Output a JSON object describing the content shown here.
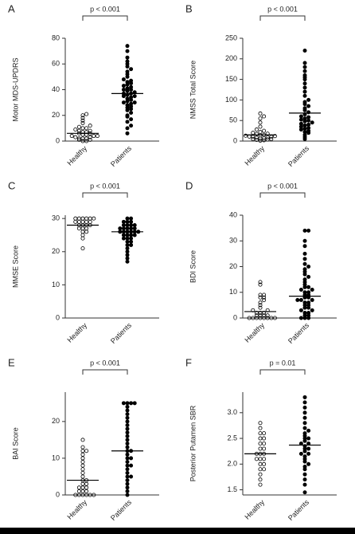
{
  "chart_data": [
    {
      "type": "strip",
      "panel": "A",
      "ylabel": "Motor MDS-UPDRS",
      "annotation": "p < 0.001",
      "categories": [
        "Healthy",
        "Patients"
      ],
      "ylim": [
        0,
        80
      ],
      "yticks": [
        0,
        20,
        40,
        60,
        80
      ],
      "groups": [
        {
          "color": "#000000",
          "fill": "none",
          "mean": 6,
          "values": [
            0,
            0,
            1,
            1,
            2,
            2,
            2,
            3,
            3,
            4,
            4,
            4,
            5,
            5,
            6,
            6,
            7,
            7,
            8,
            8,
            9,
            10,
            10,
            11,
            12,
            14,
            16,
            18,
            20,
            21
          ]
        },
        {
          "color": "#000000",
          "fill": "#000000",
          "mean": 37,
          "values": [
            6,
            10,
            12,
            15,
            17,
            19,
            20,
            22,
            24,
            25,
            26,
            27,
            28,
            29,
            30,
            30,
            31,
            32,
            33,
            34,
            35,
            35,
            36,
            37,
            37,
            38,
            39,
            40,
            40,
            41,
            42,
            43,
            44,
            45,
            46,
            47,
            48,
            50,
            52,
            54,
            56,
            58,
            60,
            62,
            65,
            70,
            74
          ]
        }
      ]
    },
    {
      "type": "strip",
      "panel": "B",
      "ylabel": "NMSS Total Score",
      "annotation": "p < 0.001",
      "categories": [
        "Healthy",
        "Patients"
      ],
      "ylim": [
        0,
        250
      ],
      "yticks": [
        0,
        50,
        100,
        150,
        200,
        250
      ],
      "groups": [
        {
          "color": "#000000",
          "fill": "none",
          "mean": 15,
          "values": [
            1,
            2,
            3,
            4,
            5,
            5,
            6,
            7,
            8,
            9,
            10,
            10,
            11,
            12,
            13,
            14,
            15,
            17,
            18,
            20,
            22,
            25,
            28,
            35,
            45,
            55,
            60,
            67
          ]
        },
        {
          "color": "#000000",
          "fill": "#000000",
          "mean": 68,
          "values": [
            5,
            10,
            15,
            20,
            22,
            25,
            28,
            30,
            32,
            35,
            38,
            40,
            42,
            45,
            48,
            50,
            52,
            55,
            58,
            60,
            65,
            70,
            75,
            80,
            85,
            90,
            95,
            100,
            110,
            120,
            130,
            140,
            150,
            155,
            160,
            170,
            180,
            190,
            220
          ]
        }
      ]
    },
    {
      "type": "strip",
      "panel": "C",
      "ylabel": "MMSE Score",
      "annotation": "p < 0.001",
      "categories": [
        "Healthy",
        "Patients"
      ],
      "ylim": [
        0,
        31
      ],
      "yticks": [
        0,
        10,
        20,
        30
      ],
      "groups": [
        {
          "color": "#000000",
          "fill": "none",
          "mean": 28,
          "values": [
            21,
            24,
            25,
            26,
            26,
            27,
            27,
            27,
            28,
            28,
            28,
            28,
            29,
            29,
            29,
            29,
            29,
            30,
            30,
            30,
            30,
            30,
            30
          ]
        },
        {
          "color": "#000000",
          "fill": "#000000",
          "mean": 26,
          "values": [
            17,
            18,
            19,
            20,
            21,
            22,
            22,
            23,
            23,
            24,
            24,
            24,
            25,
            25,
            25,
            25,
            26,
            26,
            26,
            26,
            26,
            26,
            27,
            27,
            27,
            27,
            27,
            28,
            28,
            28,
            28,
            29,
            29,
            29,
            30,
            30
          ]
        }
      ]
    },
    {
      "type": "strip",
      "panel": "D",
      "ylabel": "BDI Score",
      "annotation": "p < 0.001",
      "categories": [
        "Healthy",
        "Patients"
      ],
      "ylim": [
        0,
        40
      ],
      "yticks": [
        0,
        10,
        20,
        30,
        40
      ],
      "groups": [
        {
          "color": "#000000",
          "fill": "none",
          "mean": 2.5,
          "values": [
            0,
            0,
            0,
            0,
            0,
            0,
            0,
            0,
            1,
            1,
            1,
            1,
            2,
            2,
            2,
            3,
            3,
            4,
            5,
            6,
            7,
            8,
            8,
            9,
            9,
            13,
            14
          ]
        },
        {
          "color": "#000000",
          "fill": "#000000",
          "mean": 8.5,
          "values": [
            0,
            0,
            0,
            1,
            1,
            2,
            2,
            3,
            3,
            4,
            4,
            5,
            5,
            6,
            6,
            7,
            7,
            7,
            8,
            8,
            9,
            9,
            10,
            10,
            11,
            11,
            12,
            12,
            13,
            14,
            15,
            16,
            17,
            18,
            19,
            20,
            21,
            23,
            25,
            28,
            30,
            34,
            34
          ]
        }
      ]
    },
    {
      "type": "strip",
      "panel": "E",
      "ylabel": "BAI Score",
      "annotation": "p < 0.001",
      "categories": [
        "Healthy",
        "Patients"
      ],
      "ylim": [
        0,
        28
      ],
      "yticks": [
        0,
        10,
        20
      ],
      "groups": [
        {
          "color": "#000000",
          "fill": "none",
          "mean": 4,
          "values": [
            0,
            0,
            0,
            0,
            0,
            0,
            1,
            1,
            1,
            2,
            2,
            2,
            3,
            3,
            4,
            4,
            5,
            6,
            7,
            8,
            9,
            10,
            11,
            12,
            12,
            13,
            15
          ]
        },
        {
          "color": "#000000",
          "fill": "#000000",
          "mean": 12,
          "values": [
            0,
            1,
            2,
            3,
            4,
            5,
            5,
            6,
            7,
            8,
            8,
            9,
            10,
            10,
            11,
            12,
            12,
            13,
            14,
            15,
            16,
            17,
            18,
            19,
            20,
            21,
            22,
            23,
            24,
            25,
            25,
            25,
            25
          ]
        }
      ]
    },
    {
      "type": "strip",
      "panel": "F",
      "ylabel": "Posterior Putamen SBR",
      "annotation": "p = 0.01",
      "categories": [
        "Healthy",
        "Patients"
      ],
      "ylim": [
        1.4,
        3.4
      ],
      "yticks": [
        {
          "value": 1.5,
          "label": "1.5"
        },
        {
          "value": 2,
          "label": "2.0"
        },
        {
          "value": 2.5,
          "label": "2.5"
        },
        {
          "value": 3,
          "label": "3.0"
        }
      ],
      "groups": [
        {
          "color": "#000000",
          "fill": "none",
          "mean": 2.2,
          "values": [
            1.6,
            1.7,
            1.8,
            1.9,
            1.9,
            2.0,
            2.0,
            2.1,
            2.1,
            2.1,
            2.2,
            2.2,
            2.2,
            2.3,
            2.3,
            2.4,
            2.4,
            2.5,
            2.5,
            2.6,
            2.6,
            2.7,
            2.8
          ]
        },
        {
          "color": "#000000",
          "fill": "#000000",
          "mean": 2.37,
          "values": [
            1.45,
            1.6,
            1.7,
            1.8,
            1.9,
            1.95,
            2.0,
            2.05,
            2.1,
            2.15,
            2.2,
            2.2,
            2.25,
            2.3,
            2.3,
            2.35,
            2.4,
            2.4,
            2.45,
            2.5,
            2.5,
            2.55,
            2.6,
            2.65,
            2.7,
            2.8,
            2.9,
            3.0,
            3.1,
            3.2,
            3.3
          ]
        }
      ]
    }
  ]
}
